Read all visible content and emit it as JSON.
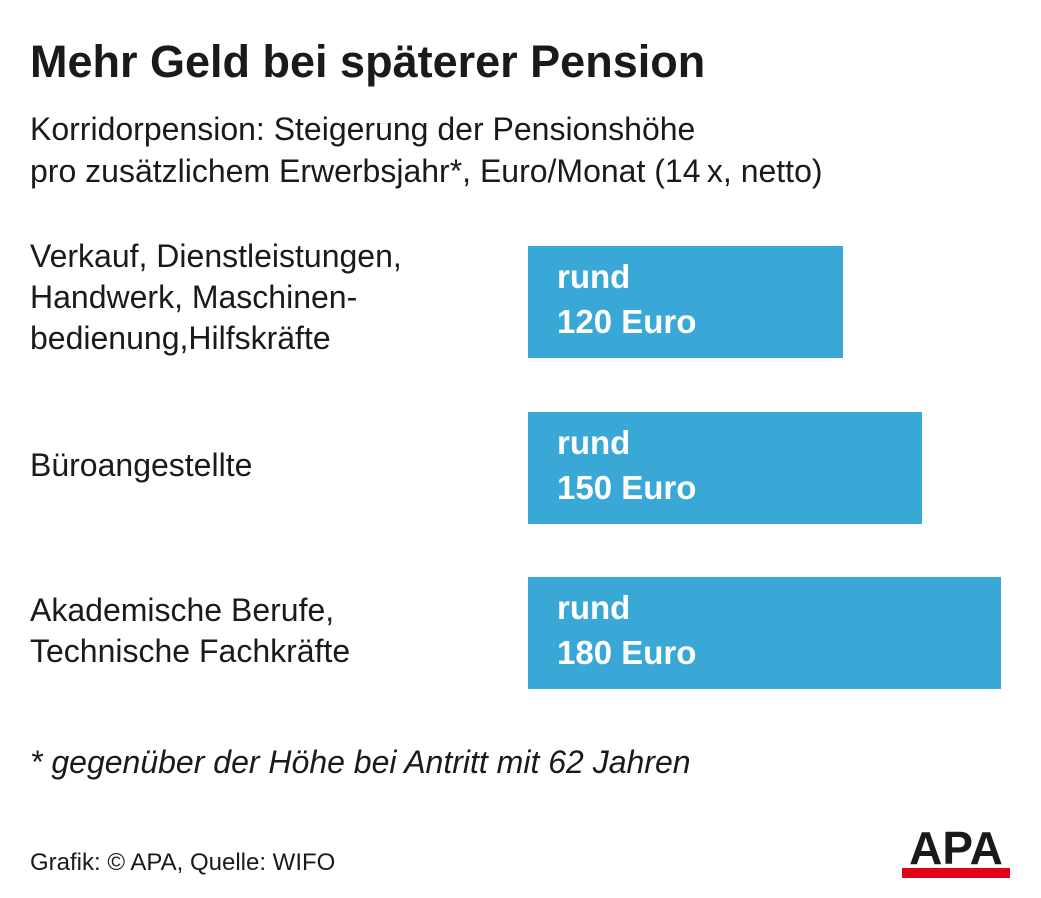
{
  "title": "Mehr Geld bei späterer Pension",
  "subtitle_lines": [
    "Korridorpension: Steigerung der Pensionshöhe",
    "pro zusätzlichem Erwerbsjahr*, Euro/Monat (14 x, netto)"
  ],
  "chart_data": {
    "type": "bar",
    "orientation": "horizontal",
    "title": "Mehr Geld bei späterer Pension",
    "subtitle": "Korridorpension: Steigerung der Pensionshöhe pro zusätzlichem Erwerbsjahr*, Euro/Monat (14 x, netto)",
    "categories": [
      [
        "Verkauf, Dienstleistungen,",
        "Handwerk, Maschinen-",
        "bedienung,Hilfskräfte"
      ],
      [
        "Büroangestellte"
      ],
      [
        "Akademische Berufe,",
        "Technische Fachkräfte"
      ]
    ],
    "values": [
      120,
      150,
      180
    ],
    "value_labels": [
      [
        "rund",
        "120 Euro"
      ],
      [
        "rund",
        "150 Euro"
      ],
      [
        "rund",
        "180 Euro"
      ]
    ],
    "unit": "Euro/Monat",
    "bar_color": "#3aa8d6",
    "label_color": "#ffffff",
    "xlim": [
      0,
      180
    ],
    "grid": false,
    "legend": "none"
  },
  "footnote": "* gegenüber der Höhe bei Antritt mit 62 Jahren",
  "source": "Grafik: © APA, Quelle: WIFO",
  "logo": {
    "text": "APA",
    "icon": "apa-logo",
    "text_color": "#1a1a1a",
    "bar_color": "#e3001b"
  }
}
